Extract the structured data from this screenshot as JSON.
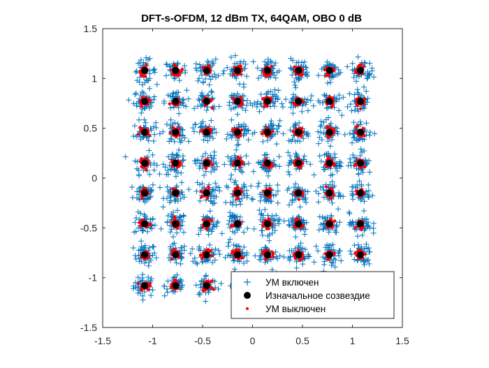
{
  "chart_data": {
    "type": "scatter",
    "title": "DFT-s-OFDM, 12 dBm TX, 64QAM, OBO 0 dB",
    "xlabel": "",
    "ylabel": "",
    "xlim": [
      -1.5,
      1.5
    ],
    "ylim": [
      -1.5,
      1.5
    ],
    "xticks": [
      -1.5,
      -1,
      -0.5,
      0,
      0.5,
      1,
      1.5
    ],
    "yticks": [
      -1.5,
      -1,
      -0.5,
      0,
      0.5,
      1,
      1.5
    ],
    "xtick_labels": [
      "-1.5",
      "-1",
      "-0.5",
      "0",
      "0.5",
      "1",
      "1.5"
    ],
    "ytick_labels": [
      "-1.5",
      "-1",
      "-0.5",
      "0",
      "0.5",
      "1",
      "1.5"
    ],
    "grid": false,
    "box": true,
    "legend_position": "bottom-right",
    "constellation_levels": [
      -1.08,
      -0.77,
      -0.46,
      -0.15,
      0.15,
      0.46,
      0.77,
      1.08
    ],
    "series": [
      {
        "name": "УМ включен",
        "marker": "plus",
        "color": "#0072BD",
        "description_spread_sigma": 0.055,
        "samples_per_point": 40
      },
      {
        "name": "Изначальное созвездие",
        "marker": "filled-circle",
        "color": "#000000"
      },
      {
        "name": "УМ выключен",
        "marker": "dot",
        "color": "#FF0000",
        "description_spread_sigma": 0.022,
        "samples_per_point": 30
      }
    ]
  }
}
